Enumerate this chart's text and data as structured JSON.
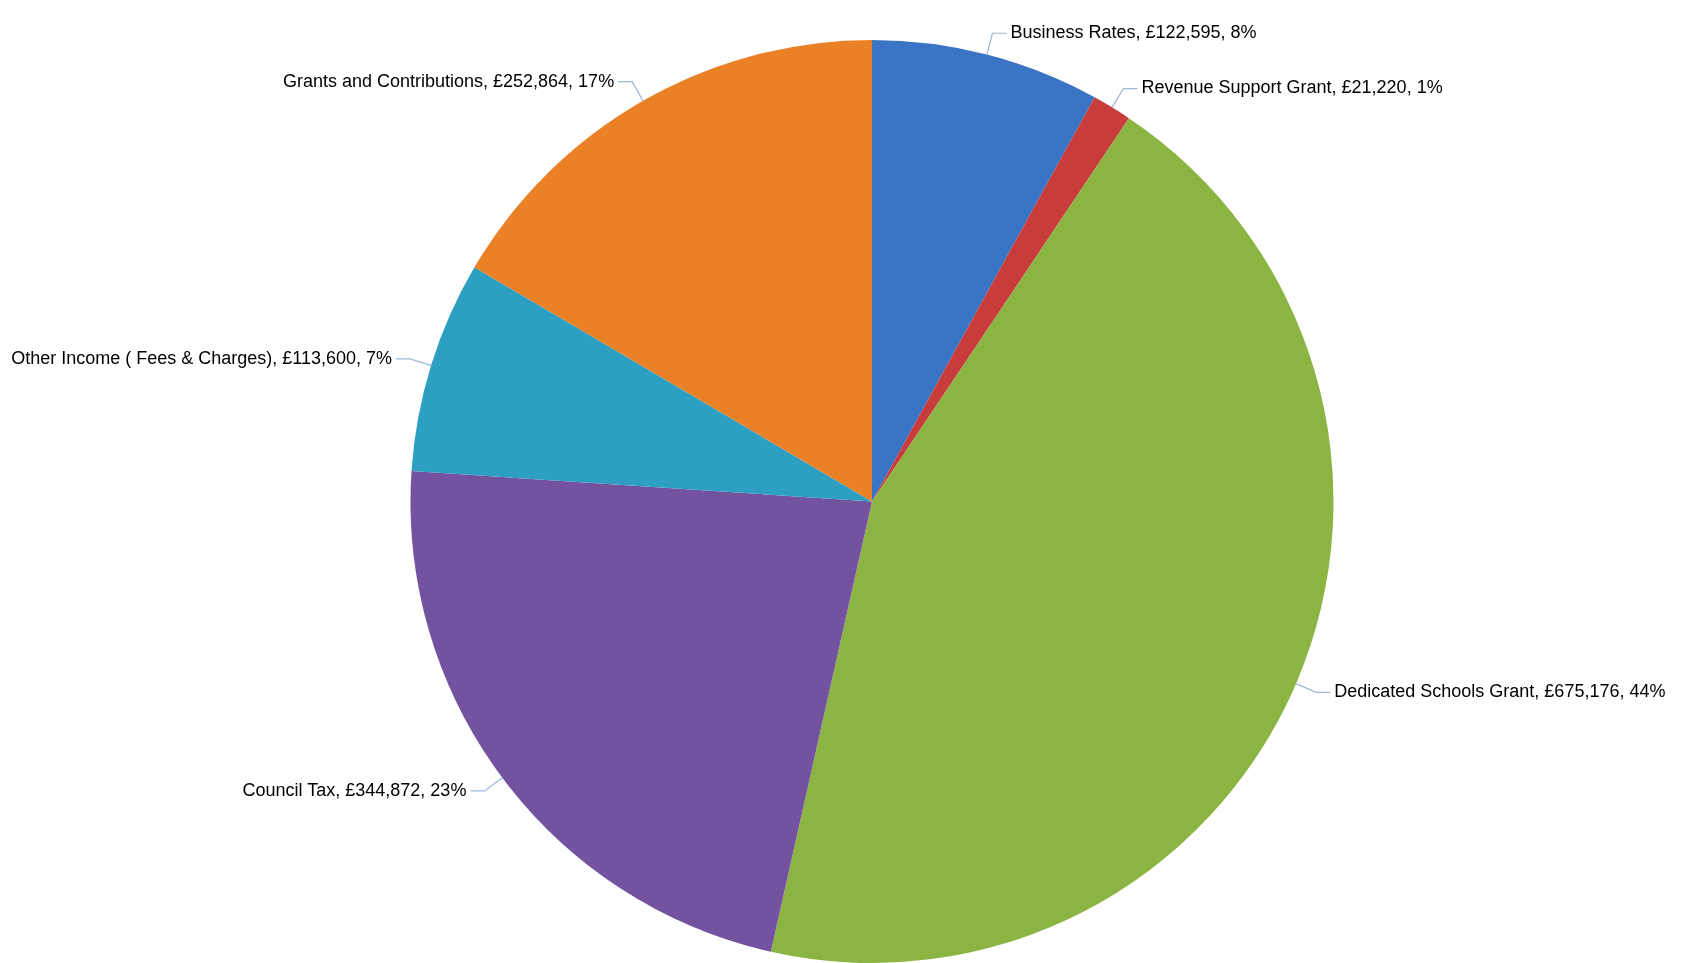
{
  "chart_data": {
    "type": "pie",
    "categories": [
      "Business Rates",
      "Revenue Support Grant",
      "Dedicated Schools Grant",
      "Council Tax",
      "Other Income ( Fees & Charges)",
      "Grants and Contributions"
    ],
    "values": [
      122595,
      21220,
      675176,
      344872,
      113600,
      252864
    ],
    "colors": [
      "#3a74c4",
      "#c83c3c",
      "#8cb443",
      "#7352a0",
      "#2c9fc2",
      "#eb8127"
    ],
    "value_labels": [
      "£122,595, 8%",
      "£21,220, 1%",
      "£675,176, 44%",
      "£344,872, 23%",
      "£113,600, 7%",
      "£252,864, 17%"
    ],
    "legend": false
  }
}
